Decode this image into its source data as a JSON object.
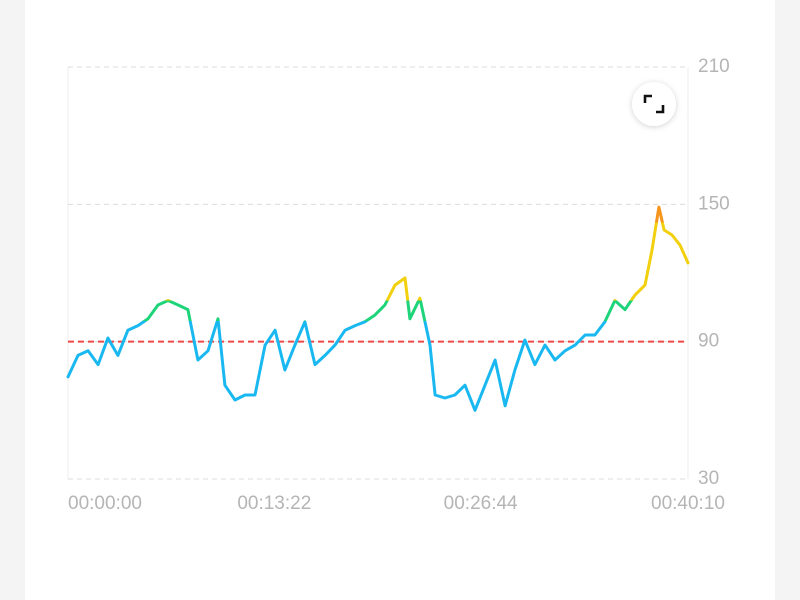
{
  "chart_data": {
    "type": "line",
    "x": [
      0,
      39,
      78,
      117,
      155,
      194,
      233,
      272,
      311,
      350,
      389,
      428,
      466,
      505,
      544,
      583,
      610,
      649,
      688,
      727,
      766,
      805,
      843,
      882,
      921,
      960,
      999,
      1038,
      1077,
      1116,
      1154,
      1193,
      1232,
      1271,
      1310,
      1329,
      1368,
      1407,
      1427,
      1465,
      1504,
      1543,
      1582,
      1621,
      1660,
      1699,
      1737,
      1776,
      1815,
      1854,
      1893,
      1932,
      1971,
      2010,
      2048,
      2087,
      2126,
      2165,
      2204,
      2243,
      2270,
      2297,
      2317,
      2348,
      2379,
      2410
    ],
    "values": [
      74.6,
      84,
      86,
      80,
      91.6,
      84,
      95,
      97,
      100,
      106,
      108,
      106,
      104,
      82,
      86,
      100,
      71,
      64.5,
      66.7,
      66.7,
      88.5,
      95,
      77.6,
      88.5,
      98.7,
      80,
      84,
      88.5,
      95,
      97,
      98.7,
      101.6,
      106,
      114.7,
      117.8,
      100,
      109,
      88.5,
      66.7,
      65.4,
      66.7,
      71,
      60,
      71,
      82,
      62,
      77.6,
      90.7,
      80,
      88.5,
      82,
      86,
      88.5,
      92.9,
      92.9,
      98.7,
      108,
      104,
      110.4,
      114.7,
      130,
      148.8,
      138.8,
      136.6,
      132.2,
      124.4
    ],
    "xlim": [
      0,
      2410
    ],
    "xticks": [
      {
        "value": 0,
        "label": "00:00:00"
      },
      {
        "value": 802,
        "label": "00:13:22"
      },
      {
        "value": 1604,
        "label": "00:26:44"
      },
      {
        "value": 2410,
        "label": "00:40:10"
      }
    ],
    "ylim": [
      30,
      210
    ],
    "yticks": [
      30,
      90,
      150,
      210
    ],
    "grid": true,
    "color_zones": [
      {
        "from": 30,
        "color": "#1ab8f0"
      },
      {
        "from": 99,
        "color": "#1ed47a"
      },
      {
        "from": 108,
        "color": "#f2d00e"
      },
      {
        "from": 142,
        "color": "#f5951b"
      }
    ],
    "reference_line": {
      "value": 90,
      "color": "#f04848"
    }
  }
}
